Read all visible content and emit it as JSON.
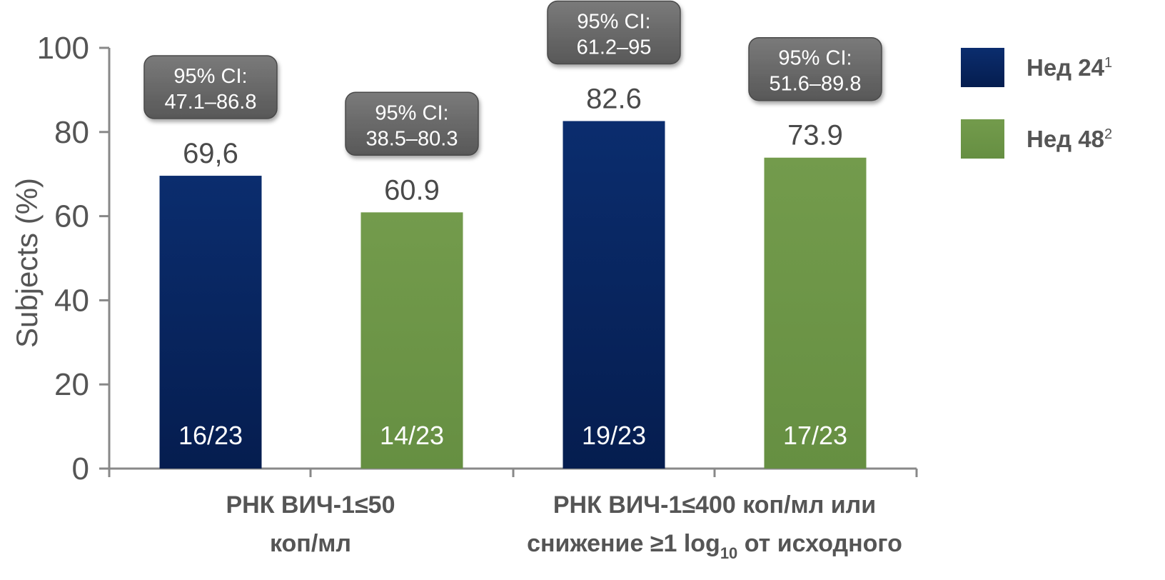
{
  "chart_data": {
    "type": "bar",
    "ylabel": "Subjects (%)",
    "ylim": [
      0,
      100
    ],
    "yticks": [
      "0",
      "20",
      "40",
      "60",
      "80",
      "100"
    ],
    "grid": false,
    "legend_position": "right",
    "categories": [
      {
        "lines": [
          "РНК ВИЧ-1≤50",
          "коп/мл"
        ]
      },
      {
        "lines": [
          "РНК ВИЧ-1≤400 коп/мл  или",
          "снижение ≥1 log10 от исходного"
        ],
        "rich_line2": {
          "before": "снижение ≥1 log",
          "sub": "10",
          "after": " от исходного"
        }
      }
    ],
    "series": [
      {
        "name": "Нед 24",
        "sup": "1",
        "color": "#0b2d6e",
        "values": [
          69.6,
          82.6
        ],
        "value_labels": [
          "69,6",
          "82.6"
        ],
        "fractions": [
          "16/23",
          "19/23"
        ],
        "ci": [
          [
            "95% CI:",
            "47.1–86.8"
          ],
          [
            "95% CI:",
            "61.2–95"
          ]
        ]
      },
      {
        "name": "Нед 48",
        "sup": "2",
        "color": "#6d9449",
        "values": [
          60.9,
          73.9
        ],
        "value_labels": [
          "60.9",
          "73.9"
        ],
        "fractions": [
          "14/23",
          "17/23"
        ],
        "ci": [
          [
            "95% CI:",
            "38.5–80.3"
          ],
          [
            "95% CI:",
            "51.6–89.8"
          ]
        ]
      }
    ]
  }
}
